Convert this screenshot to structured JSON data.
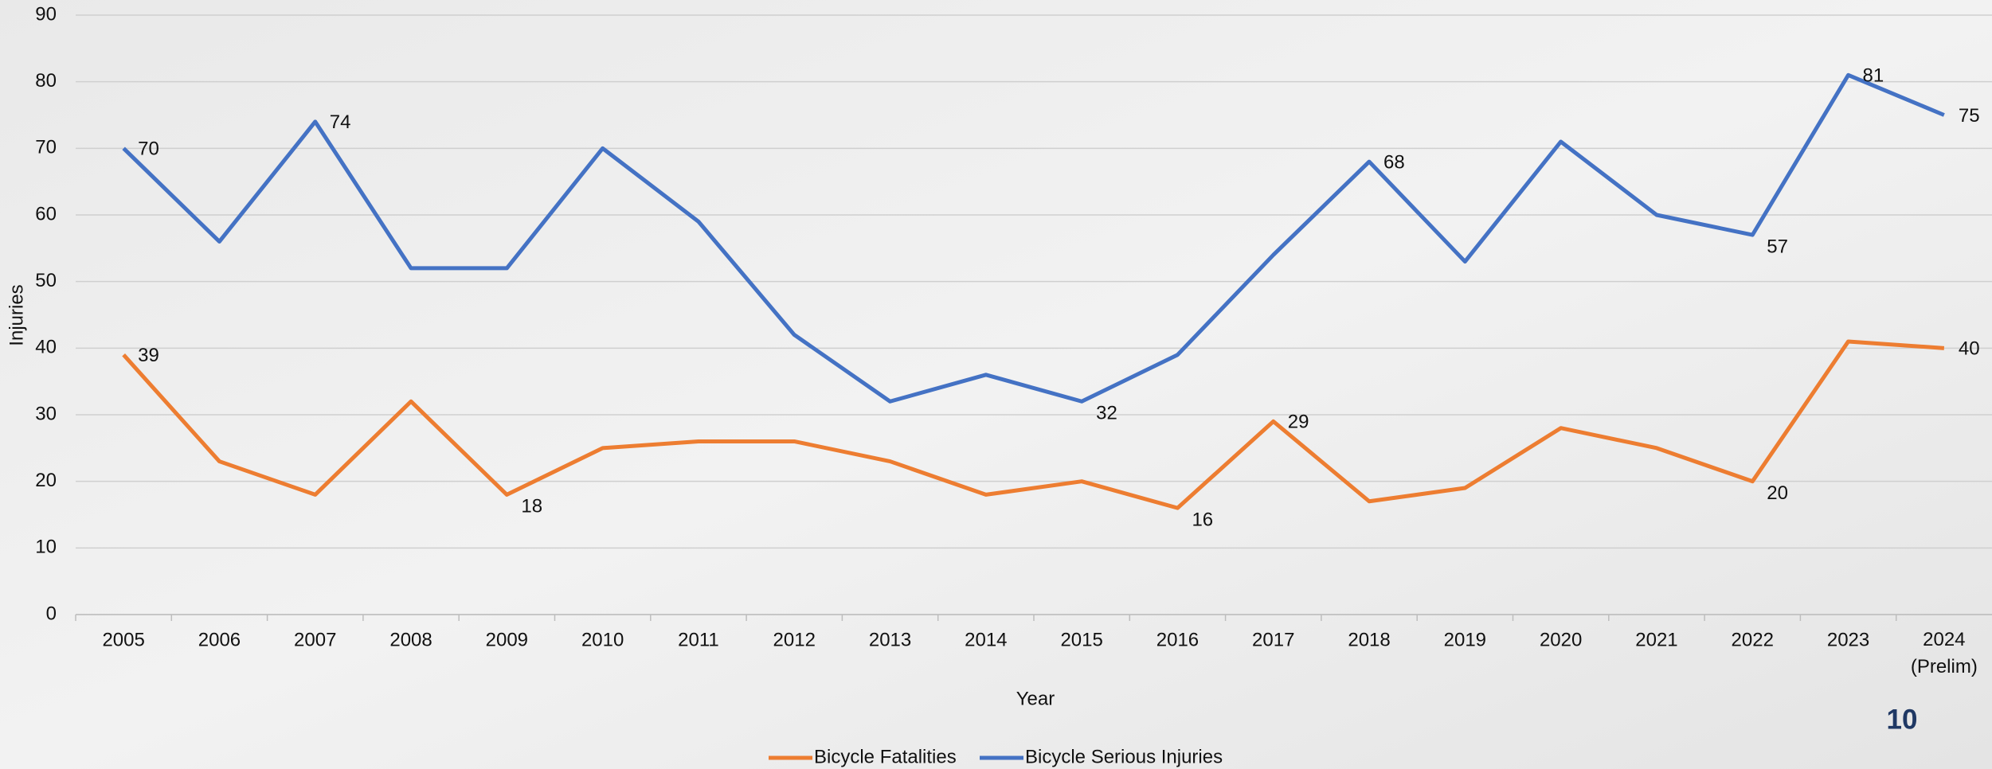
{
  "chart_data": {
    "type": "line",
    "x_label": "Year",
    "y_label": "Injuries",
    "categories": [
      "2005",
      "2006",
      "2007",
      "2008",
      "2009",
      "2010",
      "2011",
      "2012",
      "2013",
      "2014",
      "2015",
      "2016",
      "2017",
      "2018",
      "2019",
      "2020",
      "2021",
      "2022",
      "2023",
      "2024\n(Prelim)"
    ],
    "series": [
      {
        "name": "Bicycle Fatalities",
        "color": "#ed7d31",
        "values": [
          39,
          23,
          18,
          32,
          18,
          25,
          26,
          26,
          23,
          18,
          20,
          16,
          29,
          17,
          19,
          28,
          25,
          20,
          41,
          40
        ],
        "value_labels": [
          "39",
          null,
          null,
          null,
          "18",
          null,
          null,
          null,
          null,
          null,
          null,
          "16",
          "29",
          null,
          null,
          null,
          null,
          "20",
          null,
          "40"
        ]
      },
      {
        "name": "Bicycle Serious Injuries",
        "color": "#4472c4",
        "values": [
          70,
          56,
          74,
          52,
          52,
          70,
          59,
          42,
          32,
          36,
          32,
          39,
          54,
          68,
          53,
          71,
          60,
          57,
          81,
          75
        ],
        "value_labels": [
          "70",
          null,
          "74",
          null,
          null,
          null,
          null,
          null,
          null,
          null,
          "32",
          null,
          null,
          "68",
          null,
          null,
          null,
          "57",
          "81",
          "75"
        ]
      }
    ],
    "ylim": [
      0,
      90
    ],
    "yticks": [
      0,
      10,
      20,
      30,
      40,
      50,
      60,
      70,
      80,
      90
    ],
    "grid": true,
    "legend": "bottom"
  },
  "page_number": "10"
}
